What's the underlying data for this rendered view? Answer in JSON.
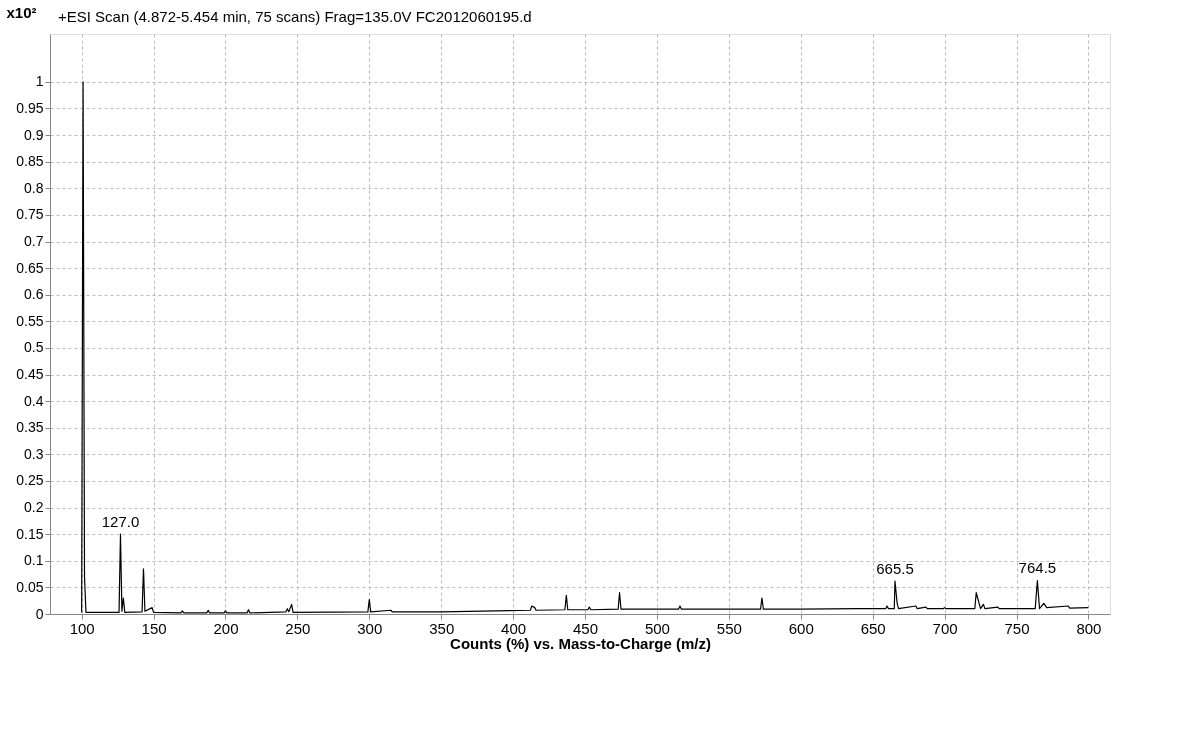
{
  "chart_data": {
    "type": "line",
    "title": "+ESI Scan (4.872-5.454 min, 75 scans) Frag=135.0V FC2012060195.d",
    "xlabel": "Counts (%) vs. Mass-to-Charge (m/z)",
    "ylabel": "x10²",
    "x": [
      100,
      101,
      102,
      103,
      126,
      127,
      128,
      129,
      130,
      142,
      143,
      144,
      149,
      150,
      169,
      170,
      171,
      187,
      188,
      189,
      199,
      200,
      201,
      215,
      216,
      217,
      242,
      243,
      244,
      246,
      247,
      299,
      300,
      301,
      315,
      316,
      350,
      412,
      413,
      415,
      416,
      436,
      437,
      438,
      452,
      453,
      454,
      473,
      474,
      475,
      515,
      516,
      517,
      572,
      573,
      574,
      600,
      640,
      659,
      660,
      661,
      665,
      665.5,
      667,
      668,
      680,
      681,
      687,
      688,
      699,
      700,
      701,
      721,
      722,
      724,
      725,
      727,
      728,
      737,
      738,
      763,
      764.5,
      766,
      769,
      771,
      786,
      787,
      800
    ],
    "series": [
      {
        "color": "#000000",
        "values": [
          0.003,
          1.0,
          0.07,
          0.003,
          0.003,
          0.15,
          0.005,
          0.03,
          0.003,
          0.004,
          0.085,
          0.005,
          0.012,
          0.003,
          0.002,
          0.006,
          0.002,
          0.002,
          0.007,
          0.002,
          0.002,
          0.006,
          0.002,
          0.002,
          0.008,
          0.002,
          0.004,
          0.01,
          0.004,
          0.018,
          0.003,
          0.004,
          0.027,
          0.004,
          0.007,
          0.004,
          0.004,
          0.007,
          0.015,
          0.012,
          0.007,
          0.008,
          0.035,
          0.008,
          0.008,
          0.013,
          0.008,
          0.009,
          0.04,
          0.009,
          0.009,
          0.015,
          0.009,
          0.009,
          0.03,
          0.009,
          0.009,
          0.01,
          0.01,
          0.015,
          0.01,
          0.01,
          0.062,
          0.02,
          0.01,
          0.015,
          0.01,
          0.013,
          0.01,
          0.01,
          0.012,
          0.01,
          0.01,
          0.04,
          0.02,
          0.01,
          0.018,
          0.01,
          0.013,
          0.01,
          0.01,
          0.063,
          0.01,
          0.02,
          0.012,
          0.015,
          0.011,
          0.012
        ]
      }
    ],
    "annotations": [
      {
        "text": "127.0",
        "x": 127,
        "y": 0.15
      },
      {
        "text": "665.5",
        "x": 665.5,
        "y": 0.062
      },
      {
        "text": "764.5",
        "x": 764.5,
        "y": 0.063
      }
    ],
    "xlim": [
      78,
      815
    ],
    "ylim": [
      0,
      1.09
    ],
    "xticks": [
      100,
      150,
      200,
      250,
      300,
      350,
      400,
      450,
      500,
      550,
      600,
      650,
      700,
      750,
      800
    ],
    "yticks": [
      0,
      0.05,
      0.1,
      0.15,
      0.2,
      0.25,
      0.3,
      0.35,
      0.4,
      0.45,
      0.5,
      0.55,
      0.6,
      0.65,
      0.7,
      0.75,
      0.8,
      0.85,
      0.9,
      0.95,
      1
    ],
    "grid": true,
    "marker": "none",
    "line_style": "solid"
  }
}
